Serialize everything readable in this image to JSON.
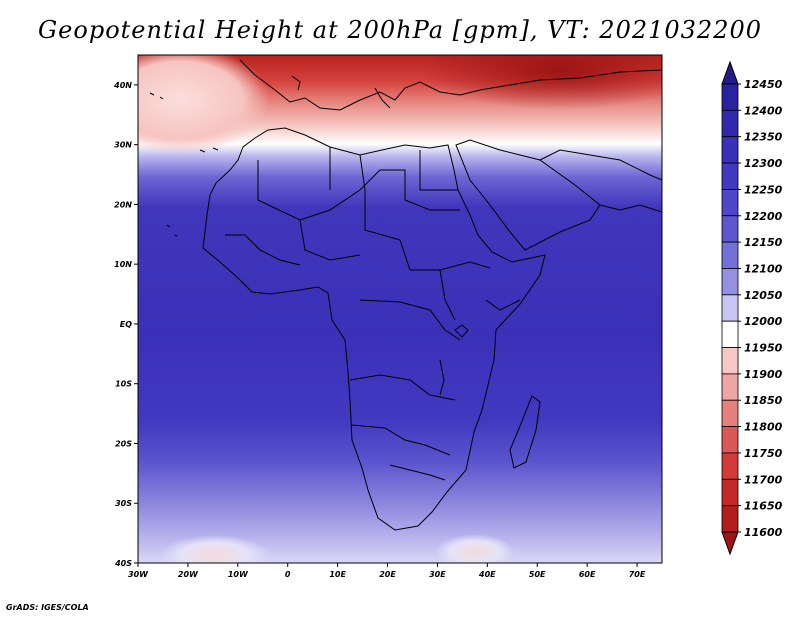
{
  "title": "Geopotential Height at 200hPa [gpm], VT: 2021032200",
  "credit": "GrADS: IGES/COLA",
  "map": {
    "lat_ticks": [
      "40N",
      "30N",
      "20N",
      "10N",
      "EQ",
      "10S",
      "20S",
      "30S",
      "40S"
    ],
    "lon_ticks": [
      "30W",
      "20W",
      "10W",
      "0",
      "10E",
      "20E",
      "30E",
      "40E",
      "50E",
      "60E",
      "70E"
    ],
    "lat_range": [
      -40,
      45
    ],
    "lon_range": [
      -30,
      75
    ]
  },
  "colorbar": {
    "levels": [
      "12450",
      "12400",
      "12350",
      "12300",
      "12250",
      "12200",
      "12150",
      "12100",
      "12050",
      "12000",
      "11950",
      "11900",
      "11850",
      "11800",
      "11750",
      "11700",
      "11650",
      "11600"
    ],
    "colors": [
      "#241a8c",
      "#2b22a0",
      "#3228ad",
      "#3a31b8",
      "#4239c0",
      "#4e47c7",
      "#5c56cf",
      "#7570d8",
      "#9490e2",
      "#c8c6f2",
      "#ffffff",
      "#f6c9c6",
      "#eda6a2",
      "#e5807c",
      "#dc5854",
      "#d23b3a",
      "#c42a2a",
      "#b01e1e",
      "#9c1414"
    ]
  }
}
